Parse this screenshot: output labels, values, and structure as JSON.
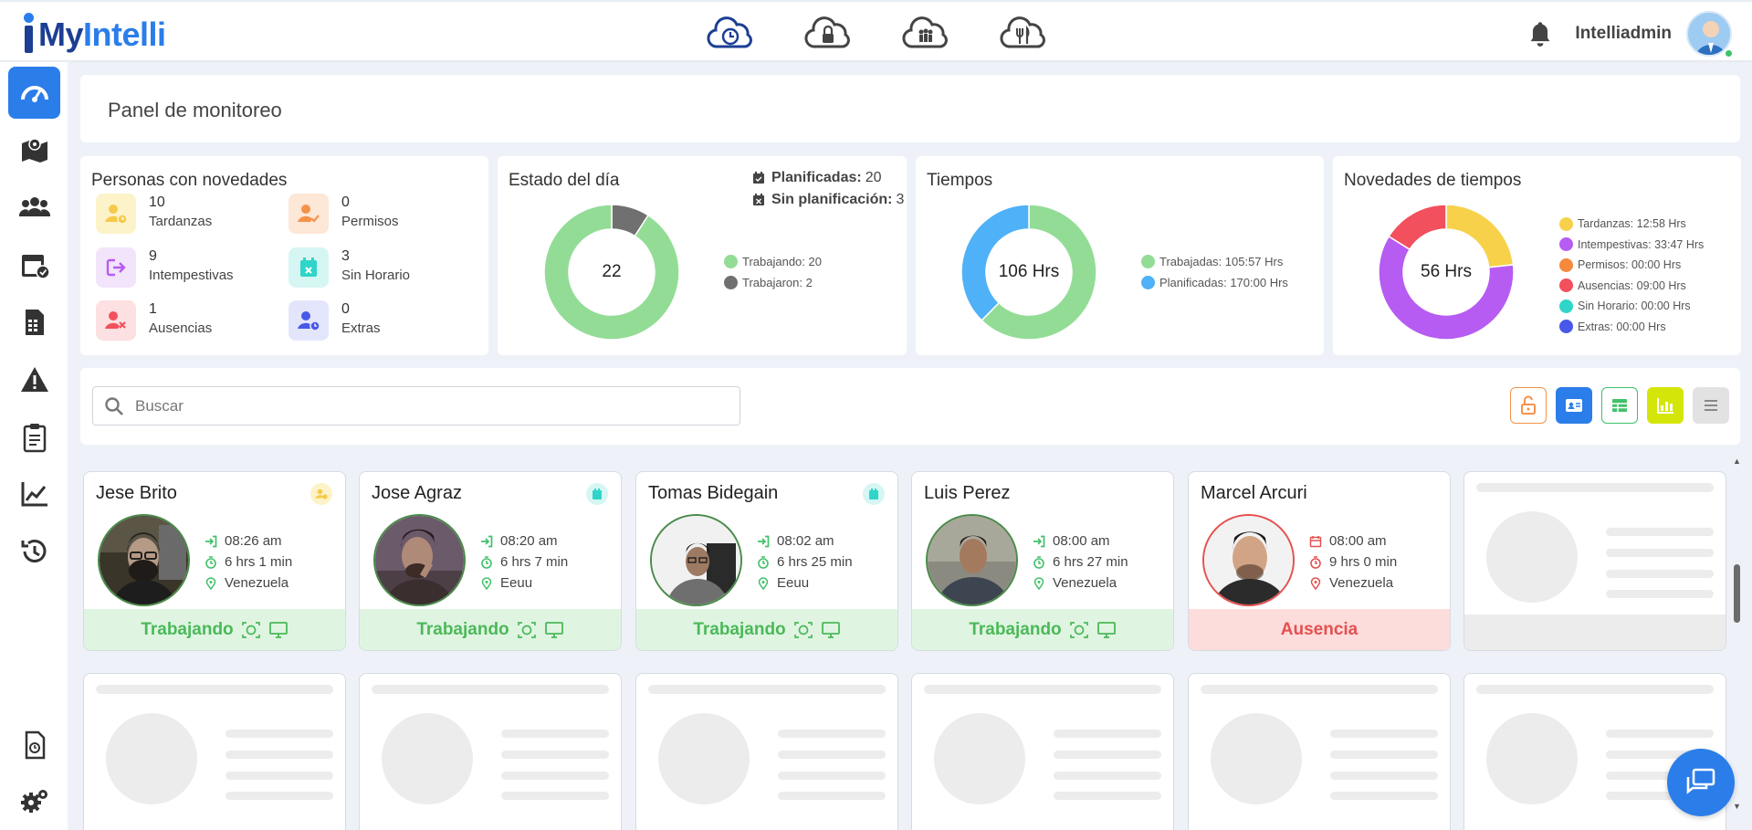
{
  "app": {
    "logo_prefix": "My",
    "logo_accent": "Intelli",
    "username": "Intelliadmin"
  },
  "top_icons": [
    "cloud-clock-icon",
    "cloud-lock-icon",
    "cloud-group-icon",
    "cloud-meal-icon"
  ],
  "sidebar": {
    "items": [
      {
        "icon": "dashboard-icon",
        "active": true
      },
      {
        "icon": "map-icon",
        "active": false
      },
      {
        "icon": "users-icon",
        "active": false
      },
      {
        "icon": "calendar-check-icon",
        "active": false
      },
      {
        "icon": "report-icon",
        "active": false
      },
      {
        "icon": "warning-icon",
        "active": false
      },
      {
        "icon": "clipboard-icon",
        "active": false
      },
      {
        "icon": "chart-icon",
        "active": false
      },
      {
        "icon": "history-icon",
        "active": false
      },
      {
        "icon": "document-icon",
        "active": false
      },
      {
        "icon": "settings-icon",
        "active": false
      }
    ]
  },
  "page": {
    "title": "Panel de monitoreo"
  },
  "personas": {
    "title": "Personas con novedades",
    "items": [
      {
        "count": "10",
        "label": "Tardanzas"
      },
      {
        "count": "0",
        "label": "Permisos"
      },
      {
        "count": "9",
        "label": "Intempestivas"
      },
      {
        "count": "3",
        "label": "Sin Horario"
      },
      {
        "count": "1",
        "label": "Ausencias"
      },
      {
        "count": "0",
        "label": "Extras"
      }
    ]
  },
  "estado": {
    "title": "Estado del día",
    "center": "22",
    "planificadas_label": "Planificadas:",
    "planificadas_value": "20",
    "sin_plan_label": "Sin planificación:",
    "sin_plan_value": "3",
    "legend": [
      "Trabajando: 20",
      "Trabajaron: 2"
    ],
    "values": [
      20,
      2
    ],
    "colors": [
      "#93dc96",
      "#707070"
    ]
  },
  "tiempos": {
    "title": "Tiempos",
    "center": "106 Hrs",
    "legend": [
      "Trabajadas: 105:57 Hrs",
      "Planificadas: 170:00 Hrs"
    ],
    "values": [
      105.95,
      64.05
    ],
    "colors": [
      "#93dc96",
      "#4fb1f7"
    ]
  },
  "novedades_tiempos": {
    "title": "Novedades de tiempos",
    "center": "56 Hrs",
    "legend": [
      "Tardanzas: 12:58 Hrs",
      "Intempestivas: 33:47 Hrs",
      "Permisos: 00:00 Hrs",
      "Ausencias: 09:00 Hrs",
      "Sin Horario: 00:00 Hrs",
      "Extras: 00:00 Hrs"
    ],
    "values": [
      12.97,
      33.78,
      0,
      9.0,
      0,
      0
    ],
    "colors": [
      "#f7d14a",
      "#b65cf2",
      "#f58a3c",
      "#f2505c",
      "#2fd5c8",
      "#4858e8"
    ]
  },
  "search": {
    "placeholder": "Buscar"
  },
  "employees": [
    {
      "name": "Jese Brito",
      "time": "08:26 am",
      "duration": "6 hrs 1 min",
      "location": "Venezuela",
      "status": "Trabajando",
      "badge": "late",
      "ok": true
    },
    {
      "name": "Jose Agraz",
      "time": "08:20 am",
      "duration": "6 hrs 7 min",
      "location": "Eeuu",
      "status": "Trabajando",
      "badge": "calendar",
      "ok": true
    },
    {
      "name": "Tomas Bidegain",
      "time": "08:02 am",
      "duration": "6 hrs 25 min",
      "location": "Eeuu",
      "status": "Trabajando",
      "badge": "calendar",
      "ok": true
    },
    {
      "name": "Luis Perez",
      "time": "08:00 am",
      "duration": "6 hrs 27 min",
      "location": "Venezuela",
      "status": "Trabajando",
      "badge": "",
      "ok": true
    },
    {
      "name": "Marcel Arcuri",
      "time": "08:00 am",
      "duration": "9 hrs 0 min",
      "location": "Venezuela",
      "status": "Ausencia",
      "badge": "",
      "ok": false
    }
  ]
}
